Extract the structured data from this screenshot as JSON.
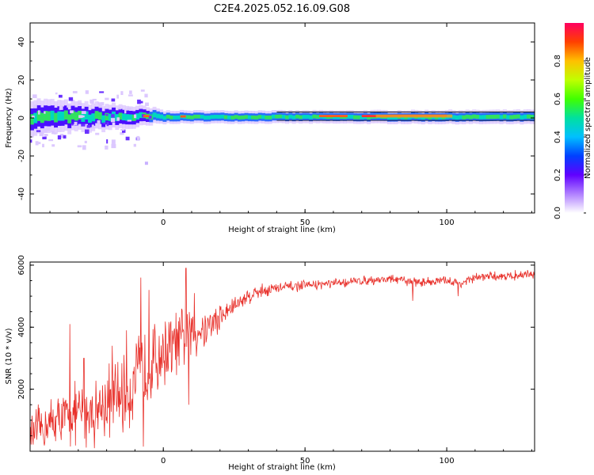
{
  "chart_data": [
    {
      "type": "heatmap",
      "title": "C2E4.2025.052.16.09.G08",
      "xlabel": "Height of straight line (km)",
      "ylabel": "Frequency (Hz)",
      "xlim": [
        -47,
        131
      ],
      "ylim": [
        -50,
        50
      ],
      "x_ticks": [
        0,
        50,
        100
      ],
      "y_ticks": [
        -40,
        -20,
        0,
        20,
        40
      ],
      "grid": false,
      "colorbar": {
        "label": "Normalized spectral amplitude",
        "range": [
          0,
          1
        ],
        "ticks": [
          "0.0",
          "0.2",
          "0.4",
          "0.6",
          "0.8"
        ],
        "colors": [
          "#ffffff",
          "#b080ff",
          "#6000ff",
          "#0040ff",
          "#00c0ff",
          "#00e0a0",
          "#40ff00",
          "#c0ff00",
          "#ffc000",
          "#ff4000",
          "#ff0060"
        ]
      },
      "band": {
        "center_hz": 0.5,
        "core_halfwidth_hz": [
          {
            "x": -47,
            "value": 5
          },
          {
            "x": -10,
            "value": 3
          },
          {
            "x": 0,
            "value": 1.8
          },
          {
            "x": 50,
            "value": 1.8
          },
          {
            "x": 131,
            "value": 2
          }
        ],
        "peak_points": [
          {
            "x": -6,
            "f": 1
          },
          {
            "x": 7,
            "f": 0.8
          },
          {
            "x": 60,
            "f": 1
          },
          {
            "x": 75,
            "f": 1
          },
          {
            "x": 85,
            "f": 1.2
          },
          {
            "x": 95,
            "f": 1.2
          }
        ]
      }
    },
    {
      "type": "line",
      "xlabel": "Height of straight line (km)",
      "ylabel": "SNR (10 * v/v)",
      "xlim": [
        -47,
        131
      ],
      "ylim": [
        0,
        6100
      ],
      "x_ticks": [
        0,
        50,
        100
      ],
      "y_ticks": [
        2000,
        4000,
        6000
      ],
      "grid": false,
      "color": "#e8302a",
      "series": [
        {
          "values": [
            {
              "x": -47,
              "y": 500
            },
            {
              "x": -40,
              "y": 900
            },
            {
              "x": -33,
              "y": 1100
            },
            {
              "x": -25,
              "y": 1300
            },
            {
              "x": -18,
              "y": 1600
            },
            {
              "x": -12,
              "y": 2000
            },
            {
              "x": -8,
              "y": 2500
            },
            {
              "x": -4,
              "y": 2900
            },
            {
              "x": 0,
              "y": 3200
            },
            {
              "x": 5,
              "y": 3500
            },
            {
              "x": 10,
              "y": 3800
            },
            {
              "x": 15,
              "y": 4000
            },
            {
              "x": 20,
              "y": 4300
            },
            {
              "x": 25,
              "y": 4700
            },
            {
              "x": 30,
              "y": 5000
            },
            {
              "x": 35,
              "y": 5200
            },
            {
              "x": 40,
              "y": 5250
            },
            {
              "x": 50,
              "y": 5350
            },
            {
              "x": 60,
              "y": 5400
            },
            {
              "x": 70,
              "y": 5500
            },
            {
              "x": 80,
              "y": 5550
            },
            {
              "x": 90,
              "y": 5450
            },
            {
              "x": 100,
              "y": 5500
            },
            {
              "x": 105,
              "y": 5400
            },
            {
              "x": 110,
              "y": 5600
            },
            {
              "x": 120,
              "y": 5650
            },
            {
              "x": 131,
              "y": 5700
            }
          ],
          "noise_amplitude": [
            {
              "x": -47,
              "value": 700
            },
            {
              "x": -10,
              "value": 1400
            },
            {
              "x": 10,
              "value": 900
            },
            {
              "x": 25,
              "value": 300
            },
            {
              "x": 50,
              "value": 150
            },
            {
              "x": 131,
              "value": 150
            }
          ],
          "spikes": [
            {
              "x": -33,
              "y": 4100
            },
            {
              "x": -28,
              "y": 3000
            },
            {
              "x": -18,
              "y": 3400
            },
            {
              "x": -13,
              "y": 3900
            },
            {
              "x": -8,
              "y": 5600
            },
            {
              "x": -7,
              "y": 150
            },
            {
              "x": -5,
              "y": 5200
            },
            {
              "x": 8,
              "y": 5900
            },
            {
              "x": 9,
              "y": 1500
            },
            {
              "x": 11,
              "y": 5100
            },
            {
              "x": 88,
              "y": 4850
            },
            {
              "x": 104,
              "y": 5000
            }
          ]
        }
      ]
    }
  ]
}
